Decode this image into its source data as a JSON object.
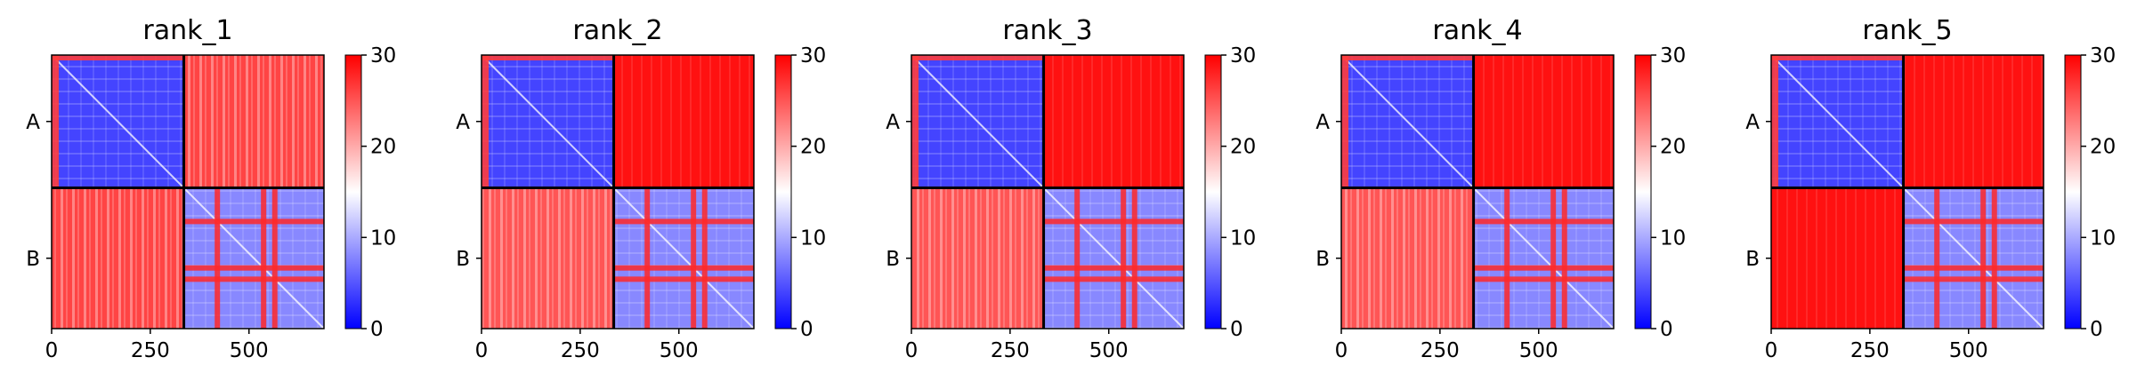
{
  "chart_data": {
    "type": "heatmap",
    "description_free": true,
    "x_range": [
      0,
      690
    ],
    "row_labels": [
      "A",
      "B"
    ],
    "x_ticks": [
      0,
      250,
      500
    ],
    "colorbar": {
      "range": [
        0,
        30
      ],
      "ticks": [
        0,
        10,
        20,
        30
      ],
      "colors": {
        "low": "#0000ff",
        "mid": "#ffffff",
        "high": "#ff0000"
      }
    },
    "chain_break": 335,
    "panels": [
      {
        "title": "rank_1",
        "blocks": {
          "AA": 4,
          "AB": 26,
          "BA": 26,
          "BB": 8
        }
      },
      {
        "title": "rank_2",
        "blocks": {
          "AA": 4,
          "AB": 29,
          "BA": 25,
          "BB": 8
        }
      },
      {
        "title": "rank_3",
        "blocks": {
          "AA": 4,
          "AB": 29,
          "BA": 25,
          "BB": 8
        }
      },
      {
        "title": "rank_4",
        "blocks": {
          "AA": 4,
          "AB": 29,
          "BA": 25,
          "BB": 8
        }
      },
      {
        "title": "rank_5",
        "blocks": {
          "AA": 4,
          "AB": 29,
          "BA": 29,
          "BB": 8
        }
      }
    ]
  }
}
